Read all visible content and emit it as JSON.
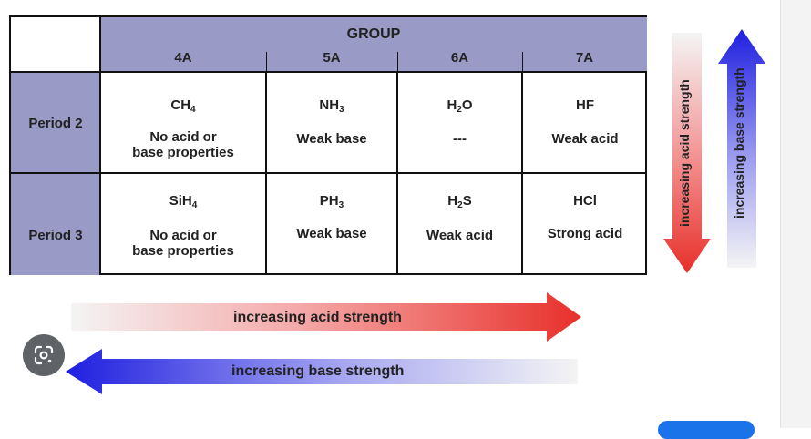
{
  "table": {
    "group_label": "GROUP",
    "groups": [
      "4A",
      "5A",
      "6A",
      "7A"
    ],
    "rows": [
      {
        "period": "Period 2",
        "cells": [
          {
            "formula": [
              "CH",
              "4",
              ""
            ],
            "description": [
              "No acid or",
              "base properties"
            ]
          },
          {
            "formula": [
              "NH",
              "3",
              ""
            ],
            "description": [
              "Weak base"
            ]
          },
          {
            "formula": [
              "H",
              "2",
              "O"
            ],
            "description": [
              "---"
            ]
          },
          {
            "formula": [
              "HF",
              "",
              ""
            ],
            "description": [
              "Weak acid"
            ]
          }
        ]
      },
      {
        "period": "Period 3",
        "cells": [
          {
            "formula": [
              "SiH",
              "4",
              ""
            ],
            "description": [
              "No acid or",
              "base properties"
            ]
          },
          {
            "formula": [
              "PH",
              "3",
              ""
            ],
            "description": [
              "Weak base"
            ]
          },
          {
            "formula": [
              "H",
              "2",
              "S"
            ],
            "description": [
              "Weak acid"
            ]
          },
          {
            "formula": [
              "HCl",
              "",
              ""
            ],
            "description": [
              "Strong acid"
            ]
          }
        ]
      }
    ]
  },
  "arrows": {
    "horizontal_acid": "increasing acid strength",
    "horizontal_base": "increasing base strength",
    "vertical_acid": "increasing acid strength",
    "vertical_base": "increasing base strength"
  },
  "colors": {
    "header_bg": "#9a9ac6",
    "acid_arrow": "#e8302a",
    "base_arrow": "#1f1fe0"
  },
  "icons": {
    "lens_button": "google-lens-icon"
  }
}
